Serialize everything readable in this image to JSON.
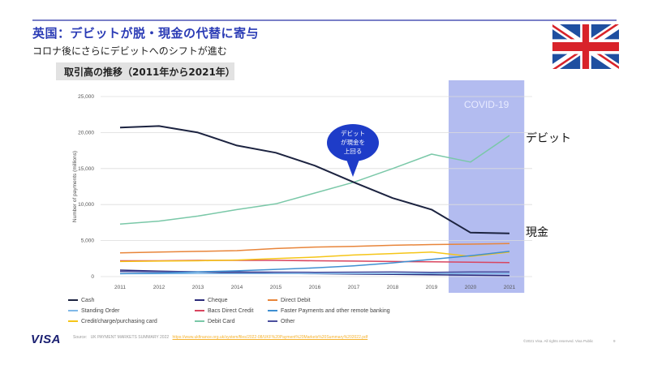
{
  "header": {
    "title": "英国：デビットが脱・現金の代替に寄与",
    "subtitle": "コロナ後にさらにデビットへのシフトが進む",
    "section_label": "取引高の推移（2011年から2021年）",
    "flag_icon": "uk-flag-icon"
  },
  "annotations": {
    "covid_label": "COVID-19",
    "covid_range": [
      "2020",
      "2021"
    ],
    "callout_lines": [
      "デビット",
      "が現金を",
      "上回る"
    ],
    "callout_year": "2017",
    "debit_label": "デビット",
    "cash_label": "現金"
  },
  "colors": {
    "covid_band": "#b3bcf0",
    "title": "#2a3bb5",
    "callout": "#1e3cc8"
  },
  "chart_data": {
    "type": "line",
    "title": "",
    "xlabel": "",
    "ylabel": "Number of payments (millions)",
    "x": [
      "2011",
      "2012",
      "2013",
      "2014",
      "2015",
      "2016",
      "2017",
      "2018",
      "2019",
      "2020",
      "2021"
    ],
    "ylim": [
      0,
      25000
    ],
    "yticks": [
      0,
      5000,
      10000,
      15000,
      20000,
      25000
    ],
    "ytick_labels": [
      "0",
      "5,000",
      "10,000",
      "15,000",
      "20,000",
      "25,000"
    ],
    "grid": true,
    "legend_position": "bottom",
    "series": [
      {
        "name": "Cash",
        "color": "#1c2340",
        "values": [
          20700,
          20900,
          20000,
          18200,
          17200,
          15400,
          13100,
          10900,
          9300,
          6100,
          6000
        ]
      },
      {
        "name": "Cheque",
        "color": "#2b2a7a",
        "values": [
          900,
          750,
          650,
          550,
          450,
          400,
          350,
          300,
          250,
          200,
          150
        ]
      },
      {
        "name": "Direct Debit",
        "color": "#e8853a",
        "values": [
          3300,
          3400,
          3500,
          3600,
          3900,
          4100,
          4200,
          4350,
          4450,
          4500,
          4600
        ]
      },
      {
        "name": "Standing Order",
        "color": "#7fb8e8",
        "values": [
          400,
          410,
          420,
          420,
          430,
          430,
          430,
          430,
          430,
          430,
          430
        ]
      },
      {
        "name": "Bacs Direct Credit",
        "color": "#d9455f",
        "values": [
          2200,
          2200,
          2250,
          2250,
          2250,
          2200,
          2150,
          2100,
          2050,
          2000,
          1950
        ]
      },
      {
        "name": "Faster Payments and other remote banking",
        "color": "#3f8fd1",
        "values": [
          400,
          500,
          650,
          800,
          1000,
          1200,
          1500,
          1900,
          2400,
          2900,
          3500
        ]
      },
      {
        "name": "Credit/charge/purchasing card",
        "color": "#f5c518",
        "values": [
          2100,
          2150,
          2200,
          2300,
          2500,
          2700,
          3000,
          3200,
          3400,
          2800,
          3400
        ]
      },
      {
        "name": "Debit Card",
        "color": "#7ac8a8",
        "values": [
          7300,
          7700,
          8400,
          9300,
          10100,
          11600,
          13100,
          15000,
          17000,
          15900,
          19600
        ]
      },
      {
        "name": "Other",
        "color": "#4b4f9e",
        "values": [
          700,
          680,
          660,
          640,
          620,
          600,
          620,
          650,
          600,
          650,
          650
        ]
      }
    ]
  },
  "footer": {
    "logo": "VISA",
    "source_label": "Source:",
    "source_text": "UK PAYMENT MARKETS SUMMARY 2022",
    "source_url": "https://www.ukfinance.org.uk/system/files/2022-08/UKF%20Payment%20Markets%20Summary%202022.pdf",
    "copyright": "©2021 Visa. All rights reserved. Visa Public",
    "page_number": "9"
  }
}
